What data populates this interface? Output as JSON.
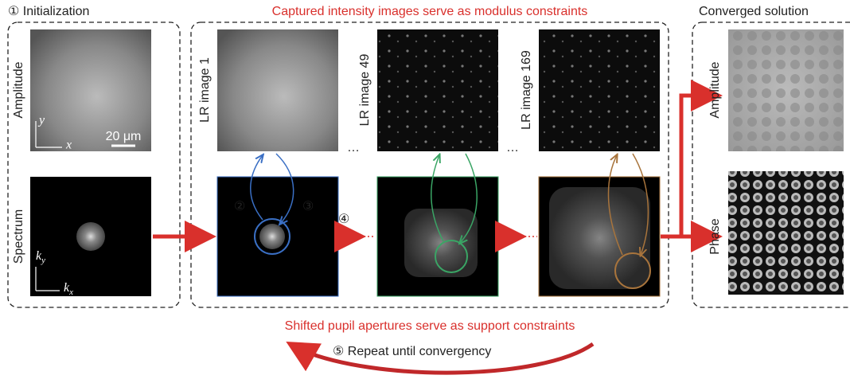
{
  "header": {
    "left": "① Initialization",
    "center": "Captured intensity images serve as modulus constraints",
    "right": "Converged solution"
  },
  "initialization": {
    "amplitude": "Amplitude",
    "spectrum": "Spectrum",
    "axis_y": "y",
    "axis_x": "x",
    "scale": "20 μm",
    "kx": {
      "base": "k",
      "sub": "x"
    },
    "ky": {
      "base": "k",
      "sub": "y"
    }
  },
  "lr_images": [
    "LR image 1",
    "LR image 49",
    "LR image 169"
  ],
  "ellipsis": "…",
  "step2": "②",
  "step3": "③",
  "step4": "④",
  "footer": {
    "support": "Shifted pupil apertures serve as support constraints",
    "repeat": "⑤ Repeat until convergency"
  },
  "solution": {
    "amplitude": "Amplitude",
    "phase": "Phase"
  }
}
